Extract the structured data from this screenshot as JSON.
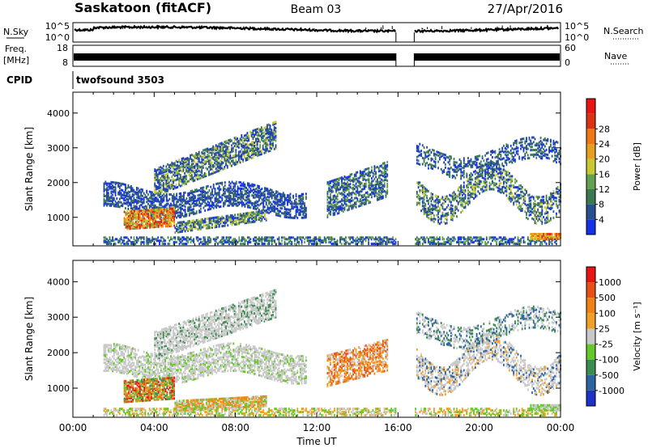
{
  "header": {
    "station": "Saskatoon (fitACF)",
    "beam": "Beam 03",
    "date": "27/Apr/2016"
  },
  "chart_data": [
    {
      "type": "line",
      "panel": "noise",
      "left_label": "N.Sky",
      "right_label": "N.Search",
      "left_ticks": [
        "10^5",
        "10^0"
      ],
      "right_ticks": [
        "10^5",
        "10^0"
      ]
    },
    {
      "type": "line",
      "panel": "frequency",
      "left_label": "Freq.",
      "left_unit": "[MHz]",
      "right_label": "Nave",
      "left_ticks": [
        18,
        8
      ],
      "right_ticks": [
        60,
        0
      ]
    },
    {
      "type": "table",
      "panel": "cpid",
      "label": "CPID",
      "value": "twofsound 3503"
    },
    {
      "type": "heatmap",
      "panel": "power",
      "ylabel": "Slant Range [km]",
      "yticks": [
        1000,
        2000,
        3000,
        4000
      ],
      "ylim": [
        180,
        4600
      ],
      "xlim": [
        0,
        24
      ],
      "colorbar_label": "Power [dB]",
      "colorbar_ticks": [
        4,
        8,
        12,
        16,
        20,
        24,
        28
      ],
      "colors": [
        "#1432e6",
        "#28508c",
        "#3c7850",
        "#64a050",
        "#c8c832",
        "#e6a01e",
        "#f07814",
        "#dc3214",
        "#e61414"
      ],
      "data_gap_hours": [
        15.9,
        16.8
      ]
    },
    {
      "type": "heatmap",
      "panel": "velocity",
      "ylabel": "Slant Range [km]",
      "yticks": [
        1000,
        2000,
        3000,
        4000
      ],
      "ylim": [
        180,
        4600
      ],
      "xlim": [
        0,
        24
      ],
      "colorbar_label": "Velocity [m s⁻¹]",
      "colorbar_ticks": [
        "1000",
        "500",
        "100",
        "25",
        "-25",
        "-100",
        "-500",
        "-1000"
      ],
      "colors": [
        "#1e32c8",
        "#2d64a0",
        "#3c8c50",
        "#64c828",
        "#c8c8c8",
        "#f0a028",
        "#f08214",
        "#e65014",
        "#e61414"
      ],
      "data_gap_hours": [
        15.9,
        16.8
      ],
      "xlabel": "Time UT",
      "xticks": [
        "00:00",
        "04:00",
        "08:00",
        "12:00",
        "16:00",
        "20:00",
        "00:00"
      ]
    }
  ]
}
